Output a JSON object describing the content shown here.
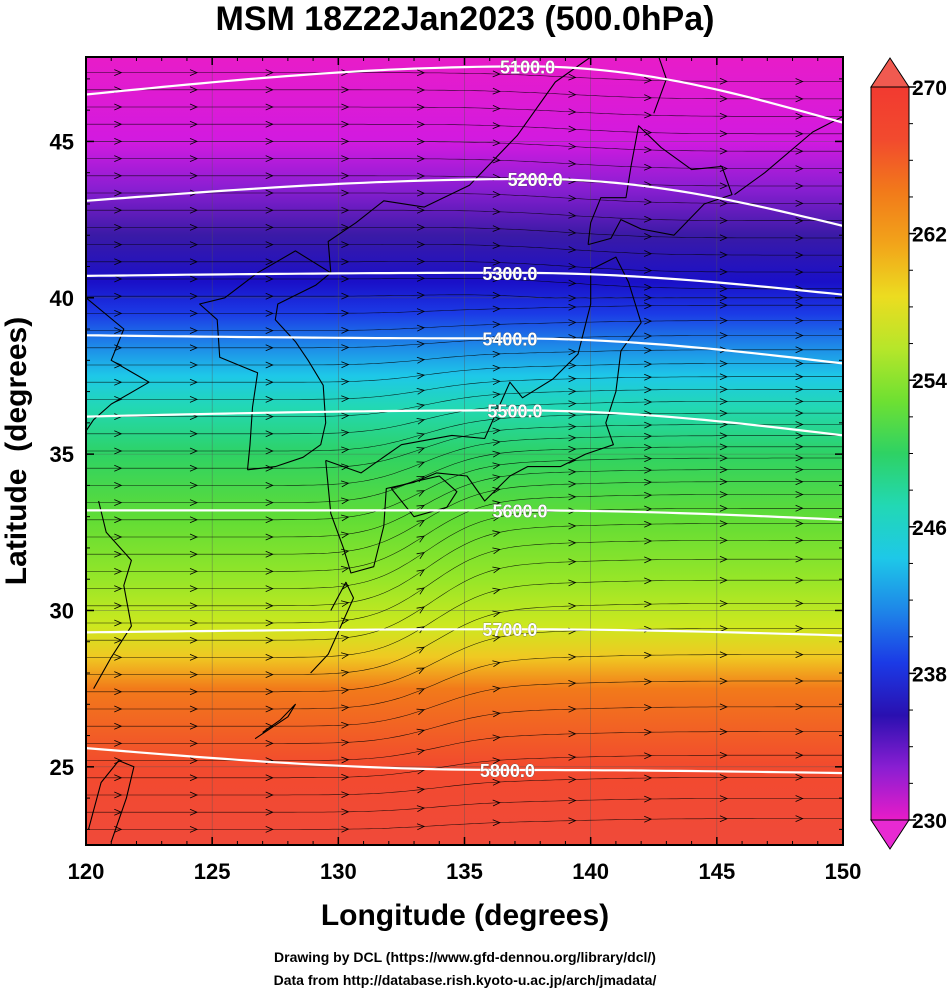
{
  "chart_data": {
    "type": "heatmap",
    "title": "MSM 18Z22Jan2023 (500.0hPa)",
    "xlabel": "Longitude (degrees)",
    "ylabel": "Latitude  (degrees)",
    "xlim": [
      120,
      150
    ],
    "ylim": [
      22.5,
      47.7
    ],
    "x_ticks": [
      "120",
      "125",
      "130",
      "135",
      "140",
      "145",
      "150"
    ],
    "y_ticks": [
      "25",
      "30",
      "35",
      "40",
      "45"
    ],
    "colorbar": {
      "range": [
        230,
        270
      ],
      "ticks": [
        "230",
        "238",
        "246",
        "254",
        "262",
        "270"
      ]
    },
    "color_stops": [
      {
        "lat": 22.5,
        "color": "#f04a3a"
      },
      {
        "lat": 25.0,
        "color": "#f24a2e"
      },
      {
        "lat": 27.5,
        "color": "#f27a1a"
      },
      {
        "lat": 28.5,
        "color": "#f0c822"
      },
      {
        "lat": 29.5,
        "color": "#cde81f"
      },
      {
        "lat": 31.0,
        "color": "#96e628"
      },
      {
        "lat": 33.0,
        "color": "#5fdc36"
      },
      {
        "lat": 35.0,
        "color": "#2ed264"
      },
      {
        "lat": 36.5,
        "color": "#22d8b4"
      },
      {
        "lat": 37.5,
        "color": "#1ec8e8"
      },
      {
        "lat": 38.5,
        "color": "#1e86e8"
      },
      {
        "lat": 39.5,
        "color": "#1b3ae6"
      },
      {
        "lat": 40.5,
        "color": "#1a10c8"
      },
      {
        "lat": 42.0,
        "color": "#3a1aa6"
      },
      {
        "lat": 43.5,
        "color": "#8a1ed2"
      },
      {
        "lat": 45.0,
        "color": "#d21ae0"
      },
      {
        "lat": 47.7,
        "color": "#e81cc8"
      }
    ],
    "contours": [
      {
        "label": "5100.0",
        "label_lon": 137.5,
        "lat_west": 46.5,
        "lat_mid": 47.4,
        "lat_east": 45.6
      },
      {
        "label": "5200.0",
        "label_lon": 137.8,
        "lat_west": 43.1,
        "lat_mid": 43.8,
        "lat_east": 42.3
      },
      {
        "label": "5300.0",
        "label_lon": 136.8,
        "lat_west": 40.7,
        "lat_mid": 40.8,
        "lat_east": 40.1
      },
      {
        "label": "5400.0",
        "label_lon": 136.8,
        "lat_west": 38.8,
        "lat_mid": 38.7,
        "lat_east": 37.9
      },
      {
        "label": "5500.0",
        "label_lon": 137.0,
        "lat_west": 36.2,
        "lat_mid": 36.4,
        "lat_east": 35.6
      },
      {
        "label": "5600.0",
        "label_lon": 137.2,
        "lat_west": 33.2,
        "lat_mid": 33.2,
        "lat_east": 32.9
      },
      {
        "label": "5700.0",
        "label_lon": 136.8,
        "lat_west": 29.3,
        "lat_mid": 29.4,
        "lat_east": 29.2
      },
      {
        "label": "5800.0",
        "label_lon": 136.7,
        "lat_west": 25.6,
        "lat_mid": 24.9,
        "lat_east": 24.8
      }
    ],
    "credits": [
      "Drawing by DCL (https://www.gfd-dennou.org/library/dcl/)",
      "Data from http://database.rish.kyoto-u.ac.jp/arch/jmadata/"
    ]
  }
}
